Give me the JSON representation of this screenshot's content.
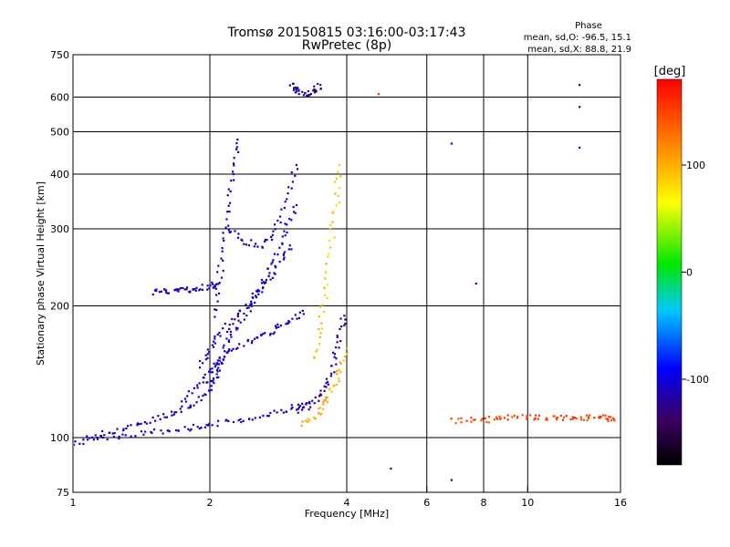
{
  "chart_data": {
    "type": "scatter",
    "title": "Tromsø 20150815 03:16:00-03:17:43",
    "subtitle": "RwPretec (8p)",
    "xlabel": "Frequency [MHz]",
    "ylabel": "Stationary phase Virtual Height [km]",
    "x_scale": "log",
    "y_scale": "log",
    "xlim": [
      1,
      16
    ],
    "ylim": [
      75,
      750
    ],
    "x_ticks": [
      "1",
      "2",
      "4",
      "6",
      "8",
      "10",
      "16"
    ],
    "x_tick_values": [
      1,
      2,
      4,
      6,
      8,
      10,
      16
    ],
    "y_ticks": [
      "75",
      "100",
      "200",
      "300",
      "400",
      "500",
      "600",
      "750"
    ],
    "y_tick_values": [
      75,
      100,
      200,
      300,
      400,
      500,
      600,
      750
    ],
    "grid": true,
    "phase_box": {
      "title": "Phase",
      "line1": "mean, sd,O: -96.5, 15.1",
      "line2": "mean, sd,X:  88.8, 21.9"
    },
    "colorbar": {
      "label": "[deg]",
      "range": [
        -180,
        180
      ],
      "ticks": [
        "100",
        "0",
        "-100"
      ],
      "tick_values": [
        100,
        0,
        -100
      ]
    },
    "traces": [
      {
        "x": [
          1.0,
          1.1,
          1.2,
          1.35,
          1.5,
          1.65,
          1.8,
          1.95,
          2.05,
          2.1
        ],
        "y": [
          96,
          100,
          103,
          106,
          110,
          114,
          118,
          124,
          135,
          150
        ],
        "phase": -110
      },
      {
        "x": [
          1.1,
          1.3,
          1.5,
          1.7,
          1.9,
          2.1,
          2.4,
          2.7,
          3.0,
          3.3
        ],
        "y": [
          100,
          101,
          103,
          104,
          106,
          108,
          110,
          113,
          117,
          120
        ],
        "phase": -105
      },
      {
        "x": [
          1.75,
          1.9,
          2.0,
          2.1,
          2.2,
          2.4,
          2.6,
          2.8,
          3.0,
          3.2
        ],
        "y": [
          120,
          132,
          142,
          150,
          158,
          165,
          170,
          178,
          185,
          195
        ],
        "phase": -108
      },
      {
        "x": [
          1.9,
          2.0,
          2.1,
          2.25,
          2.4,
          2.55,
          2.7,
          2.85,
          3.0
        ],
        "y": [
          145,
          160,
          172,
          186,
          200,
          215,
          230,
          250,
          275
        ],
        "phase": -112
      },
      {
        "x": [
          2.0,
          2.1,
          2.2,
          2.35,
          2.5,
          2.65,
          2.8,
          2.95,
          3.1
        ],
        "y": [
          135,
          150,
          168,
          185,
          205,
          230,
          260,
          300,
          340
        ],
        "phase": -100
      },
      {
        "x": [
          1.5,
          1.6,
          1.7,
          1.8,
          1.9,
          2.0,
          2.1
        ],
        "y": [
          215,
          216,
          217,
          218,
          220,
          222,
          226
        ],
        "phase": -110
      },
      {
        "x": [
          2.05,
          2.1,
          2.15,
          2.2,
          2.25,
          2.3
        ],
        "y": [
          190,
          230,
          280,
          340,
          410,
          480
        ],
        "phase": -105
      },
      {
        "x": [
          2.2,
          2.4,
          2.6,
          2.8,
          2.95,
          3.1
        ],
        "y": [
          300,
          280,
          275,
          300,
          350,
          420
        ],
        "phase": -110
      },
      {
        "x": [
          3.1,
          3.3,
          3.5,
          3.65,
          3.75,
          3.85,
          3.95
        ],
        "y": [
          115,
          118,
          125,
          135,
          150,
          170,
          190
        ],
        "phase": -118
      },
      {
        "x": [
          3.2,
          3.4,
          3.55,
          3.7,
          3.85,
          4.0
        ],
        "y": [
          108,
          112,
          118,
          128,
          140,
          160
        ],
        "phase": 100
      },
      {
        "x": [
          3.4,
          3.5,
          3.6,
          3.7,
          3.8,
          3.85
        ],
        "y": [
          150,
          180,
          220,
          280,
          350,
          420
        ],
        "phase": 90
      },
      {
        "x": [
          3.0,
          3.1,
          3.2,
          3.3,
          3.4,
          3.5
        ],
        "y": [
          640,
          625,
          610,
          605,
          620,
          640
        ],
        "phase": -120
      },
      {
        "x": [
          6.8,
          7.5,
          8.3,
          9.0,
          10.0,
          11.0,
          12.0,
          13.0,
          14.0,
          15.0,
          15.5
        ],
        "y": [
          109,
          110,
          110,
          111,
          111,
          111,
          111,
          111,
          111,
          111,
          110
        ],
        "phase": 150
      }
    ],
    "isolated_points": [
      {
        "x": 13.0,
        "y": 640,
        "phase": -120
      },
      {
        "x": 13.0,
        "y": 570,
        "phase": -120
      },
      {
        "x": 13.0,
        "y": 460,
        "phase": -120
      },
      {
        "x": 6.8,
        "y": 470,
        "phase": -100
      },
      {
        "x": 4.7,
        "y": 610,
        "phase": 160
      },
      {
        "x": 7.7,
        "y": 225,
        "phase": -100
      },
      {
        "x": 5.0,
        "y": 85,
        "phase": -140
      },
      {
        "x": 6.8,
        "y": 80,
        "phase": -140
      }
    ]
  }
}
